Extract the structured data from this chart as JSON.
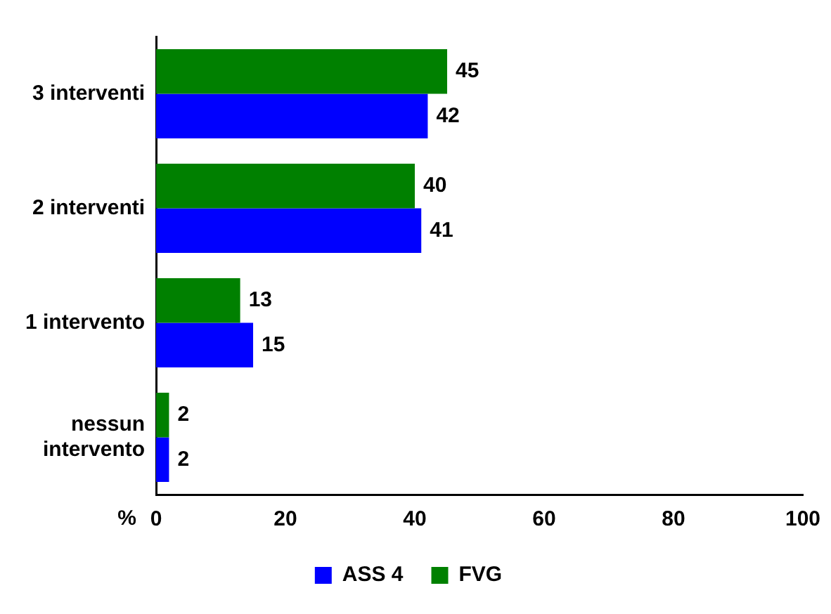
{
  "chart_data": {
    "type": "bar",
    "orientation": "horizontal",
    "xlabel": "%",
    "categories": [
      "3 interventi",
      "2 interventi",
      "1 intervento",
      "nessun intervento"
    ],
    "series": [
      {
        "name": "FVG",
        "color": "#008000",
        "values": [
          45,
          40,
          13,
          2
        ]
      },
      {
        "name": "ASS 4",
        "color": "#0000ff",
        "values": [
          42,
          41,
          15,
          2
        ]
      }
    ],
    "xlim": [
      0,
      100
    ],
    "xticks": [
      0,
      20,
      40,
      60,
      80,
      100
    ],
    "grid": false,
    "legend": "bottom",
    "data_labels": true
  }
}
